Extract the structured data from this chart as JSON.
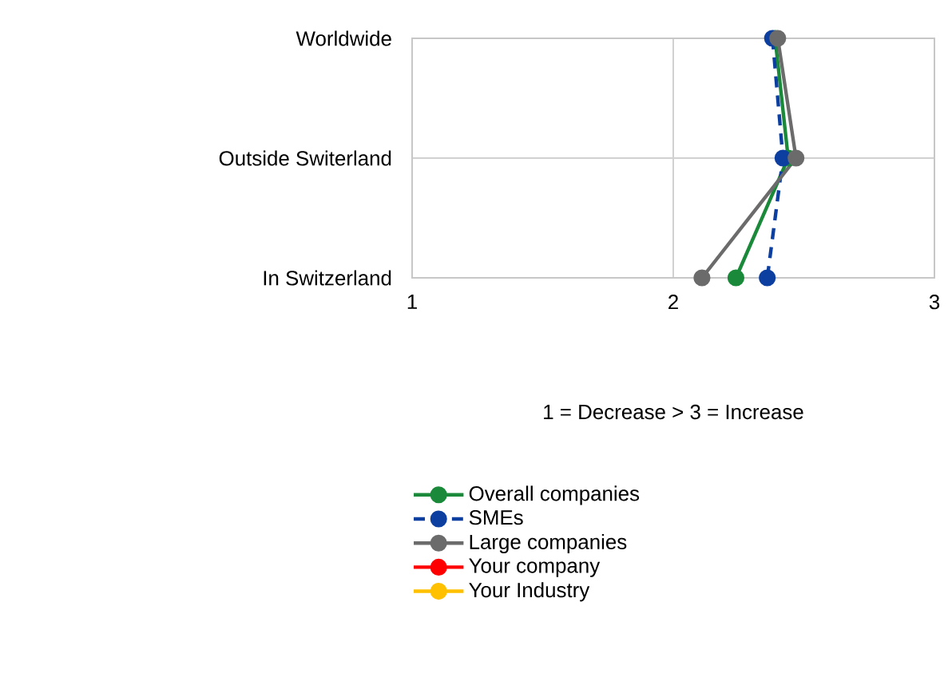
{
  "chart_data": {
    "type": "line",
    "orientation": "horizontal",
    "xlabel": "1 = Decrease > 3 = Increase",
    "categories": [
      "Worldwide",
      "Outside Switerland",
      "In Switzerland"
    ],
    "xlim": [
      1,
      3
    ],
    "xticks": [
      1,
      2,
      3
    ],
    "grid": true,
    "legend": "bottom",
    "marker": "circle",
    "series": [
      {
        "name": "Overall companies",
        "color": "#1a8a3a",
        "values": [
          2.39,
          2.44,
          2.24
        ]
      },
      {
        "name": "SMEs",
        "color": "#0d3fa0",
        "values": [
          2.38,
          2.42,
          2.36
        ],
        "line_style": "dashed"
      },
      {
        "name": "Large companies",
        "color": "#6b6b6b",
        "values": [
          2.4,
          2.47,
          2.11
        ]
      },
      {
        "name": "Your company",
        "color": "#ff0000",
        "values": [
          null,
          null,
          null
        ]
      },
      {
        "name": "Your Industry",
        "color": "#ffc000",
        "values": [
          null,
          null,
          null
        ]
      }
    ]
  }
}
